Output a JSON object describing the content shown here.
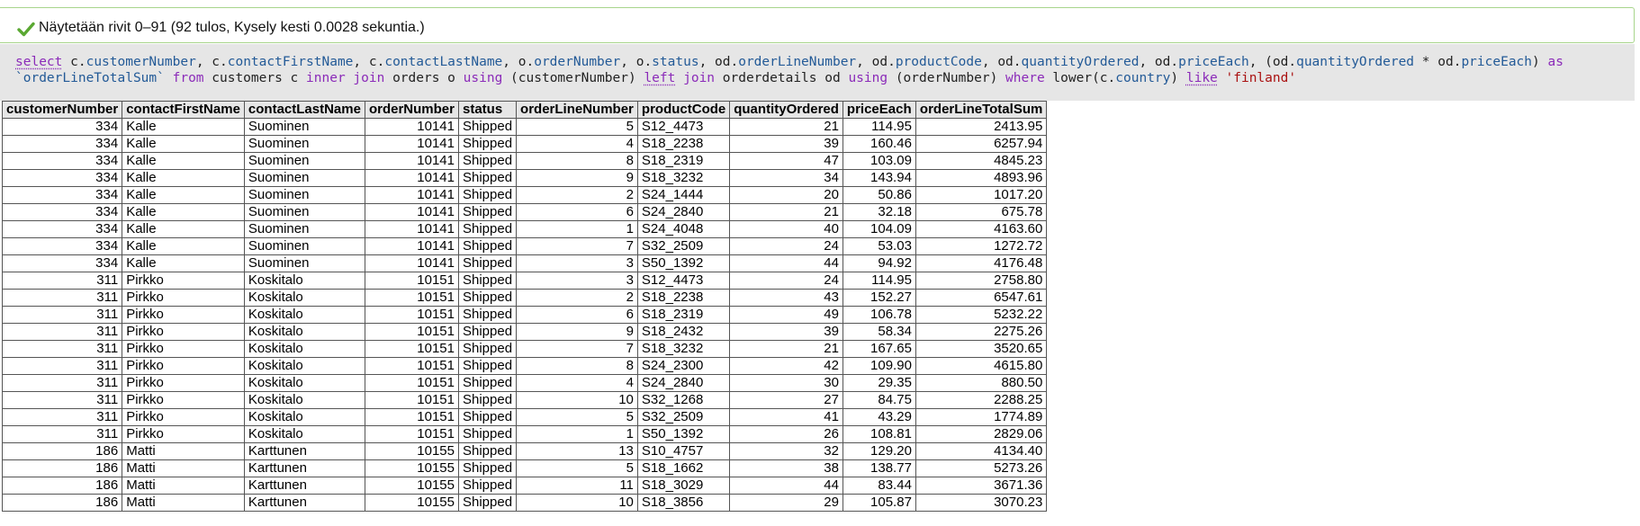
{
  "status": {
    "message": "Näytetään rivit 0–91 (92 tulos, Kysely kesti 0.0028 sekuntia.)",
    "icon": "checkmark-icon",
    "color": "#5aa832"
  },
  "sql": [
    {
      "t": "select",
      "c": "kw doc"
    },
    {
      "t": " c."
    },
    {
      "t": "customerNumber",
      "c": "fld"
    },
    {
      "t": ", c."
    },
    {
      "t": "contactFirstName",
      "c": "fld"
    },
    {
      "t": ", c."
    },
    {
      "t": "contactLastName",
      "c": "fld"
    },
    {
      "t": ", o."
    },
    {
      "t": "orderNumber",
      "c": "fld"
    },
    {
      "t": ", o."
    },
    {
      "t": "status",
      "c": "fld"
    },
    {
      "t": ", od."
    },
    {
      "t": "orderLineNumber",
      "c": "fld"
    },
    {
      "t": ", od."
    },
    {
      "t": "productCode",
      "c": "fld"
    },
    {
      "t": ", od."
    },
    {
      "t": "quantityOrdered",
      "c": "fld"
    },
    {
      "t": ", od."
    },
    {
      "t": "priceEach",
      "c": "fld"
    },
    {
      "t": ", (od."
    },
    {
      "t": "quantityOrdered",
      "c": "fld"
    },
    {
      "t": " * od."
    },
    {
      "t": "priceEach",
      "c": "fld"
    },
    {
      "t": ") "
    },
    {
      "t": "as",
      "c": "kw"
    },
    {
      "t": " "
    },
    {
      "t": "`orderLineTotalSum`",
      "c": "fld"
    },
    {
      "t": " "
    },
    {
      "t": "from",
      "c": "kw"
    },
    {
      "t": " customers c "
    },
    {
      "t": "inner",
      "c": "kw"
    },
    {
      "t": " "
    },
    {
      "t": "join",
      "c": "kw"
    },
    {
      "t": " orders o "
    },
    {
      "t": "using",
      "c": "kw"
    },
    {
      "t": " (customerNumber) "
    },
    {
      "t": "left",
      "c": "kw doc"
    },
    {
      "t": " "
    },
    {
      "t": "join",
      "c": "kw"
    },
    {
      "t": " orderdetails od "
    },
    {
      "t": "using",
      "c": "kw"
    },
    {
      "t": " (orderNumber) "
    },
    {
      "t": "where",
      "c": "kw"
    },
    {
      "t": " lower(c."
    },
    {
      "t": "country",
      "c": "fld"
    },
    {
      "t": ") "
    },
    {
      "t": "like",
      "c": "kw doc"
    },
    {
      "t": " "
    },
    {
      "t": "'finland'",
      "c": "str"
    }
  ],
  "table": {
    "columns": [
      "customerNumber",
      "contactFirstName",
      "contactLastName",
      "orderNumber",
      "status",
      "orderLineNumber",
      "productCode",
      "quantityOrdered",
      "priceEach",
      "orderLineTotalSum"
    ],
    "rows": [
      [
        "334",
        "Kalle",
        "Suominen",
        "10141",
        "Shipped",
        "5",
        "S12_4473",
        "21",
        "114.95",
        "2413.95"
      ],
      [
        "334",
        "Kalle",
        "Suominen",
        "10141",
        "Shipped",
        "4",
        "S18_2238",
        "39",
        "160.46",
        "6257.94"
      ],
      [
        "334",
        "Kalle",
        "Suominen",
        "10141",
        "Shipped",
        "8",
        "S18_2319",
        "47",
        "103.09",
        "4845.23"
      ],
      [
        "334",
        "Kalle",
        "Suominen",
        "10141",
        "Shipped",
        "9",
        "S18_3232",
        "34",
        "143.94",
        "4893.96"
      ],
      [
        "334",
        "Kalle",
        "Suominen",
        "10141",
        "Shipped",
        "2",
        "S24_1444",
        "20",
        "50.86",
        "1017.20"
      ],
      [
        "334",
        "Kalle",
        "Suominen",
        "10141",
        "Shipped",
        "6",
        "S24_2840",
        "21",
        "32.18",
        "675.78"
      ],
      [
        "334",
        "Kalle",
        "Suominen",
        "10141",
        "Shipped",
        "1",
        "S24_4048",
        "40",
        "104.09",
        "4163.60"
      ],
      [
        "334",
        "Kalle",
        "Suominen",
        "10141",
        "Shipped",
        "7",
        "S32_2509",
        "24",
        "53.03",
        "1272.72"
      ],
      [
        "334",
        "Kalle",
        "Suominen",
        "10141",
        "Shipped",
        "3",
        "S50_1392",
        "44",
        "94.92",
        "4176.48"
      ],
      [
        "311",
        "Pirkko",
        "Koskitalo",
        "10151",
        "Shipped",
        "3",
        "S12_4473",
        "24",
        "114.95",
        "2758.80"
      ],
      [
        "311",
        "Pirkko",
        "Koskitalo",
        "10151",
        "Shipped",
        "2",
        "S18_2238",
        "43",
        "152.27",
        "6547.61"
      ],
      [
        "311",
        "Pirkko",
        "Koskitalo",
        "10151",
        "Shipped",
        "6",
        "S18_2319",
        "49",
        "106.78",
        "5232.22"
      ],
      [
        "311",
        "Pirkko",
        "Koskitalo",
        "10151",
        "Shipped",
        "9",
        "S18_2432",
        "39",
        "58.34",
        "2275.26"
      ],
      [
        "311",
        "Pirkko",
        "Koskitalo",
        "10151",
        "Shipped",
        "7",
        "S18_3232",
        "21",
        "167.65",
        "3520.65"
      ],
      [
        "311",
        "Pirkko",
        "Koskitalo",
        "10151",
        "Shipped",
        "8",
        "S24_2300",
        "42",
        "109.90",
        "4615.80"
      ],
      [
        "311",
        "Pirkko",
        "Koskitalo",
        "10151",
        "Shipped",
        "4",
        "S24_2840",
        "30",
        "29.35",
        "880.50"
      ],
      [
        "311",
        "Pirkko",
        "Koskitalo",
        "10151",
        "Shipped",
        "10",
        "S32_1268",
        "27",
        "84.75",
        "2288.25"
      ],
      [
        "311",
        "Pirkko",
        "Koskitalo",
        "10151",
        "Shipped",
        "5",
        "S32_2509",
        "41",
        "43.29",
        "1774.89"
      ],
      [
        "311",
        "Pirkko",
        "Koskitalo",
        "10151",
        "Shipped",
        "1",
        "S50_1392",
        "26",
        "108.81",
        "2829.06"
      ],
      [
        "186",
        "Matti",
        "Karttunen",
        "10155",
        "Shipped",
        "13",
        "S10_4757",
        "32",
        "129.20",
        "4134.40"
      ],
      [
        "186",
        "Matti",
        "Karttunen",
        "10155",
        "Shipped",
        "5",
        "S18_1662",
        "38",
        "138.77",
        "5273.26"
      ],
      [
        "186",
        "Matti",
        "Karttunen",
        "10155",
        "Shipped",
        "11",
        "S18_3029",
        "44",
        "83.44",
        "3671.36"
      ],
      [
        "186",
        "Matti",
        "Karttunen",
        "10155",
        "Shipped",
        "10",
        "S18_3856",
        "29",
        "105.87",
        "3070.23"
      ]
    ]
  }
}
